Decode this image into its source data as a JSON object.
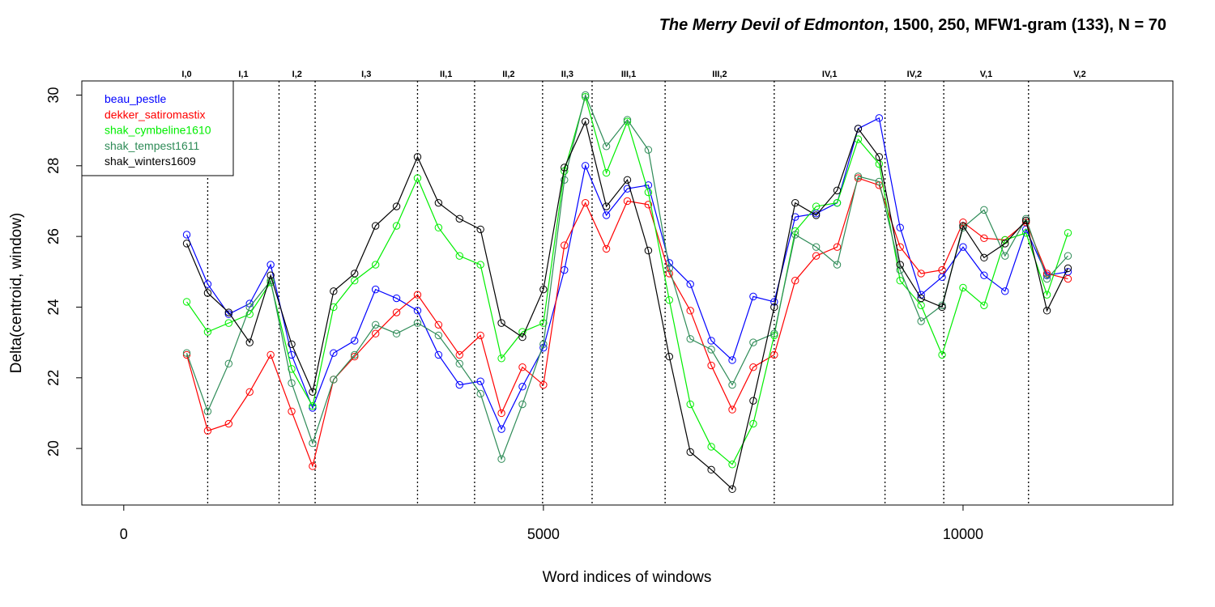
{
  "title": {
    "italic": "The Merry Devil of Edmonton",
    "rest": ", 1500, 250, MFW1-gram (133), N = 70"
  },
  "chart_data": {
    "type": "line",
    "xlabel": "Word indices of windows",
    "ylabel": "Delta(centroid, window)",
    "xlim": [
      -500,
      12500
    ],
    "ylim": [
      18.4,
      30.4
    ],
    "xticks": [
      0,
      5000,
      10000
    ],
    "yticks": [
      20,
      22,
      24,
      26,
      28,
      30
    ],
    "grid": false,
    "legend_position": "top-left",
    "x": [
      750,
      1000,
      1250,
      1500,
      1750,
      2000,
      2250,
      2500,
      2750,
      3000,
      3250,
      3500,
      3750,
      4000,
      4250,
      4500,
      4750,
      5000,
      5250,
      5500,
      5750,
      6000,
      6250,
      6500,
      6750,
      7000,
      7250,
      7500,
      7750,
      8000,
      8250,
      8500,
      8750,
      9000,
      9250,
      9500,
      9750,
      10000,
      10250,
      10500,
      10750,
      11000,
      11250
    ],
    "acts": [
      {
        "label": "I,0",
        "from": 500,
        "to": 1000
      },
      {
        "label": "I,1",
        "from": 1000,
        "to": 1850
      },
      {
        "label": "I,2",
        "from": 1850,
        "to": 2280
      },
      {
        "label": "I,3",
        "from": 2280,
        "to": 3500
      },
      {
        "label": "II,1",
        "from": 3500,
        "to": 4180
      },
      {
        "label": "II,2",
        "from": 4180,
        "to": 4990
      },
      {
        "label": "II,3",
        "from": 4990,
        "to": 5580
      },
      {
        "label": "III,1",
        "from": 5580,
        "to": 6450
      },
      {
        "label": "III,2",
        "from": 6450,
        "to": 7750
      },
      {
        "label": "IV,1",
        "from": 7750,
        "to": 9070
      },
      {
        "label": "IV,2",
        "from": 9070,
        "to": 9770
      },
      {
        "label": "V,1",
        "from": 9770,
        "to": 10780
      },
      {
        "label": "V,2",
        "from": 10780,
        "to": 12000
      }
    ],
    "series": [
      {
        "name": "beau_pestle",
        "color": "#0000ff",
        "values": [
          26.05,
          24.65,
          23.8,
          24.1,
          25.2,
          22.65,
          21.15,
          22.7,
          23.05,
          24.5,
          24.25,
          23.9,
          22.65,
          21.8,
          21.9,
          20.55,
          21.75,
          22.85,
          25.05,
          28.0,
          26.6,
          27.35,
          27.45,
          25.25,
          24.65,
          23.05,
          22.5,
          24.3,
          24.15,
          26.55,
          26.65,
          26.95,
          29.05,
          29.35,
          26.25,
          24.35,
          24.85,
          25.7,
          24.9,
          24.45,
          26.2,
          24.9,
          25.0
        ]
      },
      {
        "name": "dekker_satiromastix",
        "color": "#ff0000",
        "values": [
          22.65,
          20.5,
          20.7,
          21.6,
          22.65,
          21.05,
          19.5,
          21.95,
          22.6,
          23.25,
          23.85,
          24.35,
          23.5,
          22.65,
          23.2,
          21.0,
          22.3,
          21.8,
          25.75,
          26.95,
          25.65,
          27.0,
          26.9,
          24.95,
          23.9,
          22.35,
          21.1,
          22.3,
          22.65,
          24.75,
          25.45,
          25.7,
          27.65,
          27.45,
          25.7,
          24.95,
          25.05,
          26.4,
          25.95,
          25.9,
          26.4,
          24.95,
          24.8
        ]
      },
      {
        "name": "shak_cymbeline1610",
        "color": "#00ee00",
        "values": [
          24.15,
          23.3,
          23.55,
          23.8,
          24.7,
          22.25,
          21.2,
          24.0,
          24.75,
          25.2,
          26.3,
          27.65,
          26.25,
          25.45,
          25.2,
          22.55,
          23.3,
          23.55,
          27.85,
          29.95,
          27.8,
          29.25,
          27.25,
          24.2,
          21.25,
          20.05,
          19.55,
          20.7,
          23.2,
          26.15,
          26.85,
          26.95,
          28.75,
          28.05,
          24.75,
          24.05,
          22.65,
          24.55,
          24.05,
          25.9,
          26.1,
          24.35,
          26.1
        ]
      },
      {
        "name": "shak_tempest1611",
        "color": "#2e8b57",
        "values": [
          22.7,
          21.05,
          22.4,
          24.0,
          24.75,
          21.85,
          20.15,
          21.95,
          22.65,
          23.5,
          23.25,
          23.55,
          23.2,
          22.4,
          21.55,
          19.7,
          21.25,
          22.95,
          27.6,
          30.0,
          28.55,
          29.3,
          28.45,
          25.1,
          23.1,
          22.8,
          21.8,
          23.0,
          23.25,
          26.05,
          25.7,
          25.2,
          27.7,
          27.55,
          25.05,
          23.6,
          24.05,
          26.25,
          26.75,
          25.45,
          26.5,
          24.8,
          25.45
        ]
      },
      {
        "name": "shak_winters1609",
        "color": "#000000",
        "values": [
          25.8,
          24.4,
          23.85,
          23.0,
          24.9,
          22.95,
          21.6,
          24.45,
          24.95,
          26.3,
          26.85,
          28.25,
          26.95,
          26.5,
          26.2,
          23.55,
          23.15,
          24.5,
          27.95,
          29.25,
          26.85,
          27.6,
          25.6,
          22.6,
          19.9,
          19.4,
          18.85,
          21.35,
          24.0,
          26.95,
          26.6,
          27.3,
          29.05,
          28.25,
          25.2,
          24.25,
          24.0,
          26.3,
          25.4,
          25.8,
          26.45,
          23.9,
          25.1
        ]
      }
    ]
  }
}
